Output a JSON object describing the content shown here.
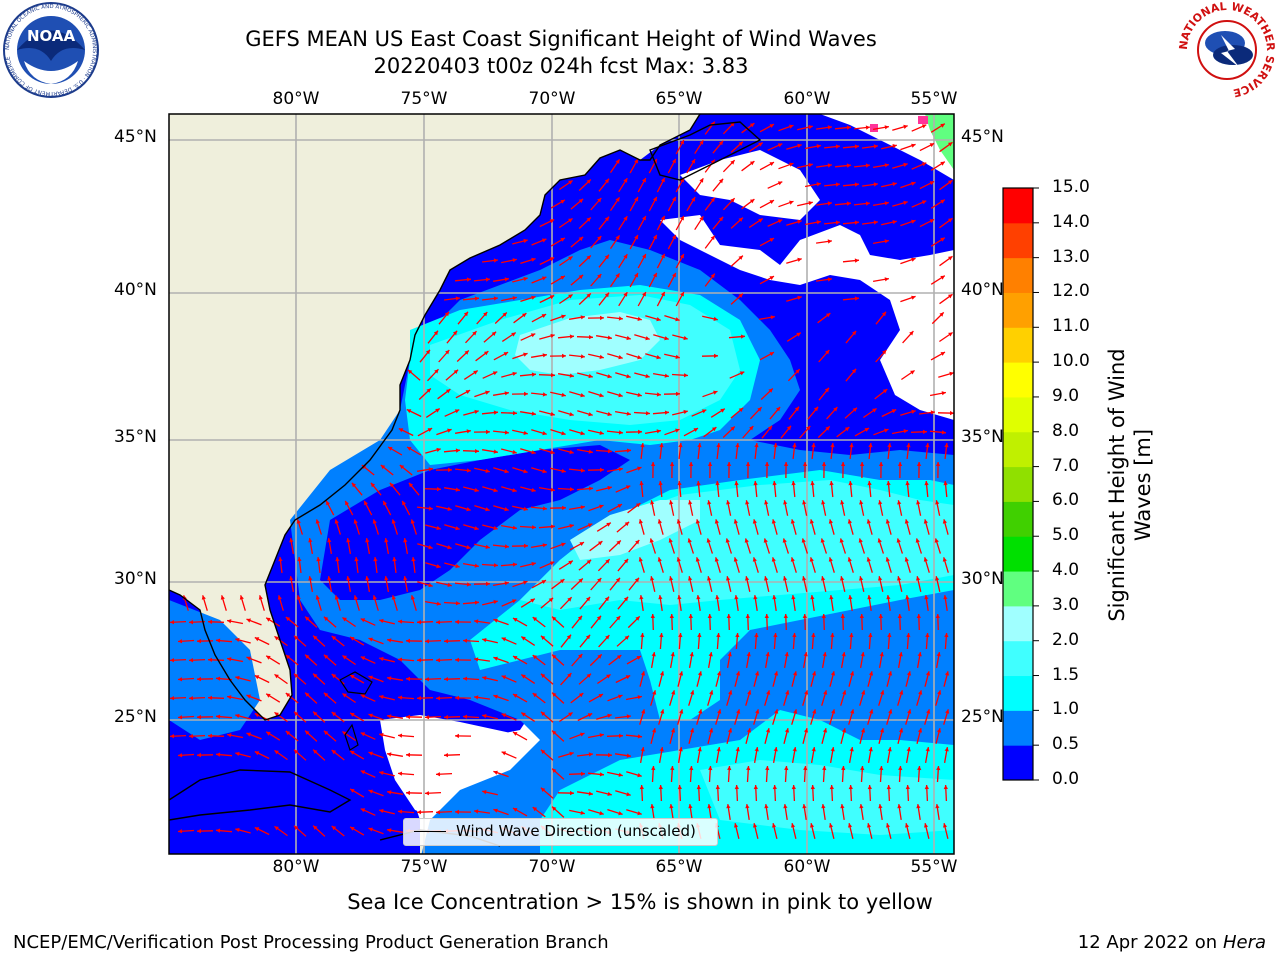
{
  "title_line1": "GEFS MEAN US East Coast Significant Height of Wind Waves",
  "title_line2": "20220403 t00z 024h fcst   Max: 3.83",
  "subtitle": "Sea Ice Concentration > 15% is shown in pink to yellow",
  "footer_left": "NCEP/EMC/Verification Post Processing Product Generation Branch",
  "footer_right_prefix": "12 Apr 2022 on ",
  "footer_right_host": "Hera",
  "legend_label": "Wind Wave Direction (unscaled)",
  "logos": {
    "noaa_text": "NOAA",
    "noaa_ring_text": "NATIONAL OCEANIC AND ATMOSPHERIC ADMINISTRATION · U.S. DEPARTMENT OF COMMERCE",
    "nws_ring_text": "NATIONAL WEATHER SERVICE"
  },
  "lon_labels": [
    "80°W",
    "75°W",
    "70°W",
    "65°W",
    "60°W",
    "55°W"
  ],
  "lat_labels": [
    "45°N",
    "40°N",
    "35°N",
    "30°N",
    "25°N"
  ],
  "colorbar": {
    "label": "Significant Height of Wind Waves [m]",
    "ticks": [
      "0.0",
      "0.5",
      "1.0",
      "1.5",
      "2.0",
      "3.0",
      "4.0",
      "5.0",
      "6.0",
      "7.0",
      "8.0",
      "9.0",
      "10.0",
      "11.0",
      "12.0",
      "13.0",
      "14.0",
      "15.0"
    ],
    "colors": [
      "#0000ff",
      "#0080ff",
      "#00ffff",
      "#40ffff",
      "#a0ffff",
      "#60ff80",
      "#00e000",
      "#40d000",
      "#90e000",
      "#c0f000",
      "#e0ff00",
      "#ffff00",
      "#ffd000",
      "#ffa000",
      "#ff8000",
      "#ff4000",
      "#ff0000"
    ]
  },
  "colors": {
    "land": "#efefdc",
    "open_water": "#ffffff",
    "arrow": "#ff0000",
    "grid": "#b0b0b0",
    "ice_pink": "#ff3399"
  },
  "chart_data": {
    "type": "map",
    "projection": "lat-lon",
    "lon_range": [
      -85,
      -54.5
    ],
    "lat_range": [
      20,
      46
    ],
    "max_value": 3.83,
    "regions": [
      {
        "label": "calm (0.0-0.5 m)",
        "color_index": 0
      },
      {
        "label": "0.5-1.0 m",
        "color_index": 1
      },
      {
        "label": "1.0-1.5 m",
        "color_index": 2
      },
      {
        "label": "1.5-2.0 m",
        "color_index": 3
      },
      {
        "label": "2.0-3.0 m",
        "color_index": 4
      }
    ]
  }
}
